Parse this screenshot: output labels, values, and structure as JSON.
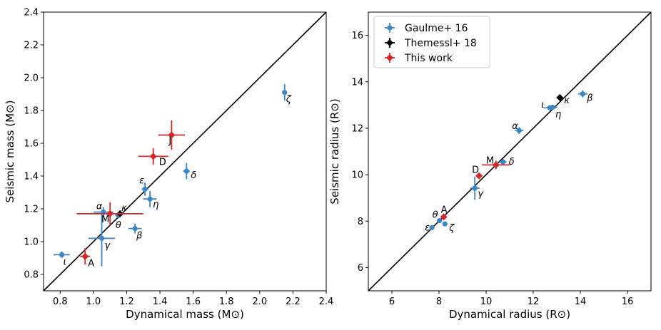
{
  "colors": {
    "Gaulme+ 16": "#3b86c6",
    "Themessl+ 18": "#000000",
    "This work": "#d62728"
  },
  "chart_data": [
    {
      "type": "scatter",
      "xlabel": "Dynamical mass (M⊙)",
      "ylabel": "Seismic mass (M⊙)",
      "xlim": [
        0.7,
        2.4
      ],
      "ylim": [
        0.7,
        2.4
      ],
      "xticks": [
        "0.8",
        "1.0",
        "1.2",
        "1.4",
        "1.6",
        "1.8",
        "2.0",
        "2.2",
        "2.4"
      ],
      "yticks": [
        "0.8",
        "1.0",
        "1.2",
        "1.4",
        "1.6",
        "1.8",
        "2.0",
        "2.2",
        "2.4"
      ],
      "reference_line": "one-to-one",
      "series": [
        {
          "name": "Gaulme+ 16",
          "marker": "circle",
          "points": [
            {
              "label": "ι",
              "x": 0.81,
              "y": 0.92,
              "xerr": 0.05,
              "yerr": 0.02
            },
            {
              "label": "α",
              "x": 1.06,
              "y": 1.18,
              "xerr": 0.06,
              "yerr": 0.03
            },
            {
              "label": "θ",
              "x": 1.15,
              "y": 1.16,
              "xerr": 0.02,
              "yerr": 0.02
            },
            {
              "label": "γ",
              "x": 1.05,
              "y": 1.02,
              "xerr": 0.08,
              "yerr": 0.17
            },
            {
              "label": "ε",
              "x": 1.31,
              "y": 1.32,
              "xerr": 0.02,
              "yerr": 0.04
            },
            {
              "label": "η",
              "x": 1.34,
              "y": 1.26,
              "xerr": 0.04,
              "yerr": 0.05
            },
            {
              "label": "β",
              "x": 1.25,
              "y": 1.08,
              "xerr": 0.04,
              "yerr": 0.03
            },
            {
              "label": "δ",
              "x": 1.56,
              "y": 1.43,
              "xerr": 0.02,
              "yerr": 0.05
            },
            {
              "label": "ζ",
              "x": 2.15,
              "y": 1.91,
              "xerr": 0.01,
              "yerr": 0.05
            }
          ]
        },
        {
          "name": "Themessl+ 18",
          "marker": "diamond",
          "points": [
            {
              "label": "κ",
              "x": 1.16,
              "y": 1.17,
              "xerr": 0.02,
              "yerr": 0.02
            }
          ]
        },
        {
          "name": "This work",
          "marker": "diamond",
          "points": [
            {
              "label": "A",
              "x": 0.95,
              "y": 0.91,
              "xerr": 0.03,
              "yerr": 0.05
            },
            {
              "label": "M",
              "x": 1.1,
              "y": 1.17,
              "xerr": 0.2,
              "yerr": 0.07
            },
            {
              "label": "D",
              "x": 1.36,
              "y": 1.52,
              "xerr": 0.09,
              "yerr": 0.05
            },
            {
              "label": "J",
              "x": 1.47,
              "y": 1.65,
              "xerr": 0.08,
              "yerr": 0.09
            }
          ]
        }
      ]
    },
    {
      "type": "scatter",
      "xlabel": "Dynamical radius (R⊙)",
      "ylabel": "Seismic radius (R⊙)",
      "xlim": [
        5,
        17
      ],
      "ylim": [
        5,
        17
      ],
      "xticks": [
        "6",
        "8",
        "10",
        "12",
        "14",
        "16"
      ],
      "yticks": [
        "6",
        "8",
        "10",
        "12",
        "14",
        "16"
      ],
      "reference_line": "one-to-one",
      "legend": {
        "position": "top-left",
        "entries": [
          "Gaulme+ 16",
          "Themessl+ 18",
          "This work"
        ]
      },
      "series": [
        {
          "name": "Gaulme+ 16",
          "marker": "circle",
          "points": [
            {
              "label": "ε",
              "x": 7.7,
              "y": 7.72,
              "xerr": 0.1,
              "yerr": 0.1
            },
            {
              "label": "θ",
              "x": 8.02,
              "y": 8.02,
              "xerr": 0.1,
              "yerr": 0.1
            },
            {
              "label": "ζ",
              "x": 8.25,
              "y": 7.88,
              "xerr": 0.08,
              "yerr": 0.08
            },
            {
              "label": "γ",
              "x": 9.52,
              "y": 9.42,
              "xerr": 0.2,
              "yerr": 0.5
            },
            {
              "label": "δ",
              "x": 10.72,
              "y": 10.55,
              "xerr": 0.15,
              "yerr": 0.12
            },
            {
              "label": "α",
              "x": 11.4,
              "y": 11.9,
              "xerr": 0.18,
              "yerr": 0.15
            },
            {
              "label": "ι",
              "x": 12.7,
              "y": 12.88,
              "xerr": 0.25,
              "yerr": 0.1
            },
            {
              "label": "η",
              "x": 12.82,
              "y": 12.9,
              "xerr": 0.2,
              "yerr": 0.1
            },
            {
              "label": "β",
              "x": 14.1,
              "y": 13.48,
              "xerr": 0.2,
              "yerr": 0.15
            }
          ]
        },
        {
          "name": "Themessl+ 18",
          "marker": "diamond",
          "points": [
            {
              "label": "κ",
              "x": 13.13,
              "y": 13.32,
              "xerr": 0.05,
              "yerr": 0.05
            }
          ]
        },
        {
          "name": "This work",
          "marker": "diamond",
          "points": [
            {
              "label": "A",
              "x": 8.2,
              "y": 8.18,
              "xerr": 0.12,
              "yerr": 0.1
            },
            {
              "label": "D",
              "x": 9.7,
              "y": 9.95,
              "xerr": 0.12,
              "yerr": 0.1
            },
            {
              "label": "M",
              "x": 10.42,
              "y": 10.42,
              "xerr": 0.6,
              "yerr": 0.18
            }
          ]
        }
      ]
    }
  ]
}
